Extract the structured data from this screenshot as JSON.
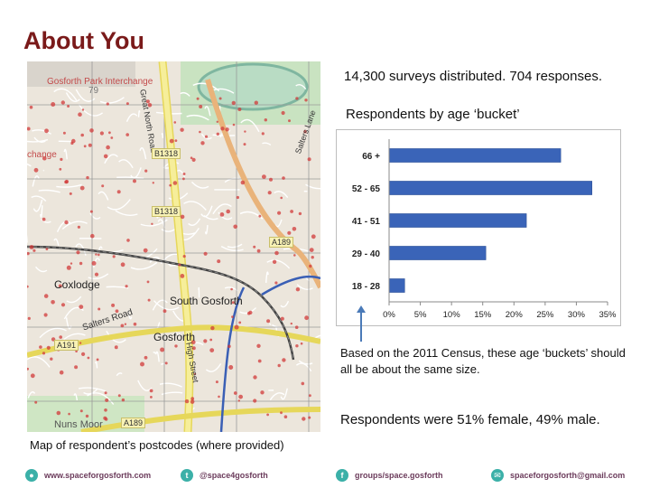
{
  "title": "About You",
  "stat_line": "14,300 surveys distributed. 704 responses.",
  "chart_heading": "Respondents by age ‘bucket’",
  "chart_data": {
    "type": "bar",
    "orientation": "horizontal",
    "categories": [
      "66 +",
      "52 - 65",
      "41 - 51",
      "29 - 40",
      "18 - 28"
    ],
    "values": [
      27.5,
      32.5,
      22,
      15.5,
      2.5
    ],
    "xlim": [
      0,
      35
    ],
    "x_ticks": [
      "0%",
      "5%",
      "10%",
      "15%",
      "20%",
      "25%",
      "30%",
      "35%"
    ],
    "x_tick_values": [
      0,
      5,
      10,
      15,
      20,
      25,
      30,
      35
    ],
    "bar_color": "#3a64b8",
    "grid": false,
    "legend": "none"
  },
  "note": "Based on the 2011 Census, these age ‘buckets’ should all be about the same size.",
  "gender_line": "Respondents were 51% female, 49% male.",
  "map": {
    "caption": "Map of respondent’s postcodes (where provided)",
    "labels": {
      "interchange": "Gosforth Park Interchange",
      "n79": "79",
      "great_north_road": "Great North Road",
      "b1318_a": "B1318",
      "b1318_b": "B1318",
      "a189_a": "A189",
      "a189_b": "A189",
      "coxlodge": "Coxlodge",
      "south_gosforth": "South Gosforth",
      "salters_road": "Salters Road",
      "gosforth": "Gosforth",
      "high_street": "High Street",
      "a191": "A191",
      "nuns_moor": "Nuns Moor",
      "change": "change",
      "salters_lane": "Salters Lane"
    }
  },
  "footer": {
    "website": "www.spaceforgosforth.com",
    "twitter": "@space4gosforth",
    "facebook": "groups/space.gosforth",
    "email": "spaceforgosforth@gmail.com"
  },
  "colors": {
    "title": "#7a1a1a",
    "footer_icon": "#3bb0a8",
    "footer_text": "#6b3b5b"
  }
}
